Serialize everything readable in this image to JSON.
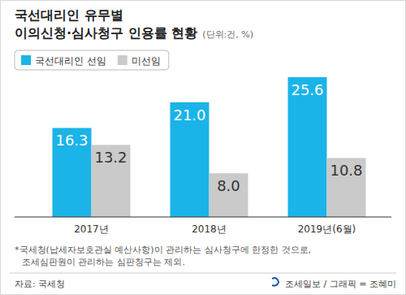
{
  "chart_data": {
    "type": "bar",
    "title": [
      "국선대리인 유무별",
      "이의신청·심사청구 인용률 현황"
    ],
    "subtitle": "(단위:건, %)",
    "categories": [
      "2017년",
      "2018년",
      "2019년(6월)"
    ],
    "series": [
      {
        "name": "국선대리인 선임",
        "color": "#1ab4e8",
        "values": [
          16.3,
          21.0,
          25.6
        ],
        "value_labels": [
          "16.3",
          "21.0",
          "25.6"
        ]
      },
      {
        "name": "미선임",
        "color": "#cacaca",
        "values": [
          13.2,
          8.0,
          10.8
        ],
        "value_labels": [
          "13.2",
          "8.0",
          "10.8"
        ]
      }
    ],
    "ylim": [
      0,
      30
    ],
    "data_labels": true,
    "tick_labels": "x",
    "legend": "top-left",
    "annotations": [
      "*국세청(납세자보호관실 예산사항)이 관리하는 심사청구에 한정한 것으로,",
      "조세심판원이 관리하는 심판청구는 제외.",
      "자료: 국세청",
      "조세일보 / 그래픽 = 조혜미"
    ]
  }
}
